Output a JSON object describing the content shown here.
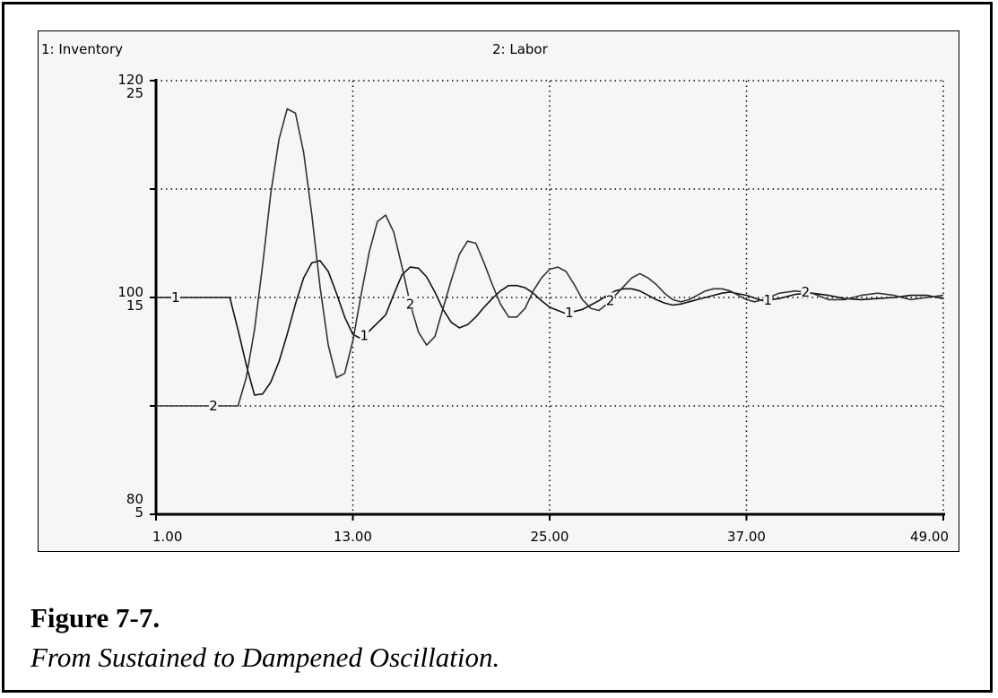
{
  "figure": {
    "title": "Figure 7-7.",
    "subtitle": "From Sustained to Dampened Oscillation."
  },
  "chart_data": {
    "type": "line",
    "legend": [
      "1: Inventory",
      "2: Labor"
    ],
    "x_ticks": [
      "1.00",
      "13.00",
      "25.00",
      "37.00",
      "49.00"
    ],
    "xlim": [
      1,
      49
    ],
    "y_axis_1": {
      "top": "120",
      "mid": "100",
      "bottom": "80",
      "ylim": [
        80,
        120
      ]
    },
    "y_axis_2": {
      "top": "25",
      "mid": "15",
      "bottom": "5",
      "ylim": [
        5,
        25
      ]
    },
    "grid": true,
    "series": [
      {
        "name": "1: Inventory",
        "marker": "1",
        "x": [
          1,
          5.5,
          6,
          6.5,
          7,
          7.5,
          8,
          8.5,
          9,
          9.5,
          10,
          10.5,
          11,
          11.5,
          12,
          12.5,
          13,
          13.5,
          14,
          15,
          15.5,
          16,
          16.5,
          17,
          17.5,
          18,
          18.5,
          19,
          19.5,
          20,
          20.5,
          21,
          21.5,
          22,
          22.5,
          23,
          23.5,
          24,
          24.5,
          25,
          26,
          26.5,
          27,
          27.5,
          28,
          28.5,
          29,
          29.5,
          30,
          30.5,
          31,
          31.5,
          32,
          32.5,
          33,
          33.5,
          34,
          34.5,
          35,
          35.5,
          36,
          37,
          38,
          39,
          40,
          41,
          42,
          43,
          44,
          45,
          46,
          47,
          48,
          49
        ],
        "y": [
          100,
          100,
          97,
          93.8,
          91,
          91.1,
          92.2,
          94.1,
          96.6,
          99.4,
          101.8,
          103.2,
          103.4,
          102.4,
          100.4,
          98.2,
          96.6,
          96.2,
          96.9,
          98.4,
          100.3,
          102.1,
          102.8,
          102.7,
          101.9,
          100.5,
          98.9,
          97.7,
          97.2,
          97.5,
          98.2,
          99.1,
          99.9,
          100.6,
          101.1,
          101.1,
          100.9,
          100.4,
          99.7,
          99.1,
          98.5,
          98.7,
          98.9,
          99.3,
          99.7,
          100.2,
          100.6,
          100.8,
          100.8,
          100.6,
          100.2,
          99.8,
          99.5,
          99.3,
          99.4,
          99.6,
          99.8,
          100,
          100.2,
          100.4,
          100.5,
          100.2,
          99.7,
          99.9,
          100.3,
          100.4,
          100.2,
          99.9,
          99.8,
          99.9,
          100,
          100.2,
          100.2,
          99.9
        ]
      },
      {
        "name": "2: Labor",
        "marker": "2",
        "x": [
          1,
          6,
          6.5,
          7,
          7.5,
          8,
          8.5,
          9,
          9.5,
          10,
          10.5,
          11,
          11.5,
          12,
          12.5,
          13,
          13.5,
          14,
          14.5,
          15,
          15.5,
          16,
          16.5,
          17,
          17.5,
          18,
          18.5,
          19,
          19.5,
          20,
          20.5,
          21,
          21.5,
          22,
          22.5,
          23,
          23.5,
          24,
          24.5,
          25,
          25.5,
          26,
          26.5,
          27,
          27.5,
          28,
          28.5,
          29,
          29.5,
          30,
          30.5,
          31,
          31.5,
          32,
          32.5,
          33,
          33.5,
          34,
          34.5,
          35,
          35.5,
          36,
          36.5,
          37,
          37.5,
          38,
          39,
          40,
          41,
          42,
          43,
          44,
          45,
          46,
          47,
          48,
          49
        ],
        "y": [
          10,
          10,
          11.3,
          13.5,
          16.5,
          19.8,
          22.3,
          23.7,
          23.5,
          21.7,
          18.8,
          15.5,
          12.8,
          11.3,
          11.5,
          13,
          15.1,
          17.1,
          18.5,
          18.8,
          18,
          16.4,
          14.7,
          13.4,
          12.8,
          13.2,
          14.5,
          15.8,
          17,
          17.6,
          17.5,
          16.6,
          15.6,
          14.7,
          14.1,
          14.1,
          14.5,
          15.3,
          15.9,
          16.3,
          16.4,
          16.2,
          15.6,
          14.9,
          14.5,
          14.4,
          14.7,
          15.1,
          15.5,
          15.9,
          16.1,
          15.9,
          15.6,
          15.2,
          14.9,
          14.8,
          14.9,
          15.1,
          15.3,
          15.4,
          15.4,
          15.3,
          15.1,
          14.9,
          14.8,
          14.9,
          15.2,
          15.3,
          15.2,
          14.9,
          14.9,
          15.1,
          15.2,
          15.1,
          14.9,
          15,
          15.1
        ]
      }
    ]
  }
}
